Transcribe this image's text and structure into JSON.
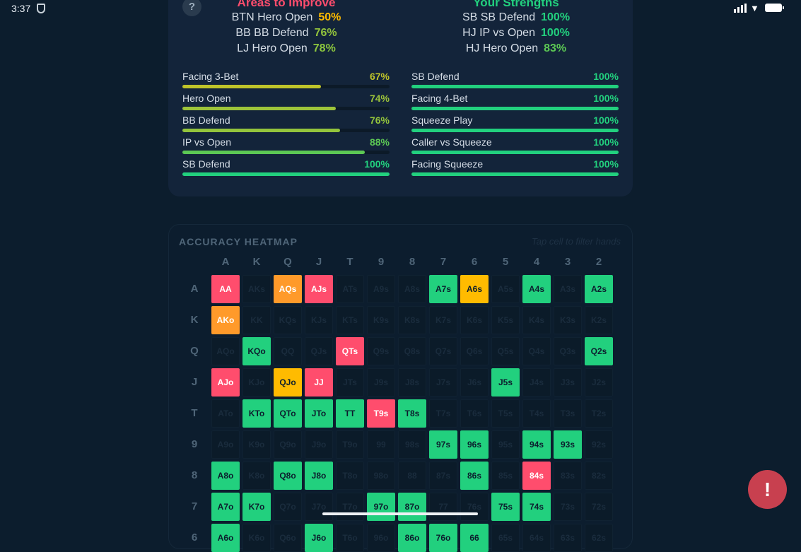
{
  "status_bar": {
    "time": "3:37"
  },
  "summary": {
    "help_label": "?",
    "improve": {
      "title": "Areas to Improve",
      "items": [
        {
          "label": "BTN Hero Open",
          "value": "50%",
          "color": "#ffbb00"
        },
        {
          "label": "BB BB Defend",
          "value": "76%",
          "color": "#93c43c"
        },
        {
          "label": "LJ Hero Open",
          "value": "78%",
          "color": "#8cc63e"
        }
      ]
    },
    "strengths": {
      "title": "Your Strengths",
      "items": [
        {
          "label": "SB SB Defend",
          "value": "100%",
          "color": "#22d07e"
        },
        {
          "label": "HJ IP vs Open",
          "value": "100%",
          "color": "#22d07e"
        },
        {
          "label": "HJ Hero Open",
          "value": "83%",
          "color": "#5cc854"
        }
      ]
    },
    "left_bars": [
      {
        "label": "Facing 3-Bet",
        "value": "67%",
        "pct": 67,
        "color": "#bfc42a"
      },
      {
        "label": "Hero Open",
        "value": "74%",
        "pct": 74,
        "color": "#9dc43a"
      },
      {
        "label": "BB Defend",
        "value": "76%",
        "pct": 76,
        "color": "#93c43c"
      },
      {
        "label": "IP vs Open",
        "value": "88%",
        "pct": 88,
        "color": "#5cc854"
      },
      {
        "label": "SB Defend",
        "value": "100%",
        "pct": 100,
        "color": "#22d07e"
      }
    ],
    "right_bars": [
      {
        "label": "SB Defend",
        "value": "100%",
        "pct": 100,
        "color": "#22d07e"
      },
      {
        "label": "Facing 4-Bet",
        "value": "100%",
        "pct": 100,
        "color": "#22d07e"
      },
      {
        "label": "Squeeze Play",
        "value": "100%",
        "pct": 100,
        "color": "#22d07e"
      },
      {
        "label": "Caller vs Squeeze",
        "value": "100%",
        "pct": 100,
        "color": "#22d07e"
      },
      {
        "label": "Facing Squeeze",
        "value": "100%",
        "pct": 100,
        "color": "#22d07e"
      }
    ]
  },
  "heatmap": {
    "title": "ACCURACY HEATMAP",
    "hint": "Tap cell to filter hands",
    "ranks": [
      "A",
      "K",
      "Q",
      "J",
      "T",
      "9",
      "8",
      "7",
      "6",
      "5",
      "4",
      "3",
      "2"
    ],
    "colors": {
      "red": "#ff4d6d",
      "orange": "#ff9a2a",
      "yellow": "#ffbb00",
      "green": "#22d07e"
    },
    "rows": [
      [
        "r",
        "",
        "o",
        "r",
        "",
        "",
        "",
        "g",
        "y",
        "",
        "g",
        "",
        "g"
      ],
      [
        "o",
        "",
        "",
        "",
        "",
        "",
        "",
        "",
        "",
        "",
        "",
        "",
        ""
      ],
      [
        "",
        "g",
        "",
        "",
        "r",
        "",
        "",
        "",
        "",
        "",
        "",
        "",
        "g"
      ],
      [
        "r",
        "",
        "y",
        "r",
        "",
        "",
        "",
        "",
        "",
        "g",
        "",
        "",
        ""
      ],
      [
        "",
        "g",
        "g",
        "g",
        "g",
        "r",
        "g",
        "",
        "",
        "",
        "",
        "",
        ""
      ],
      [
        "",
        "",
        "",
        "",
        "",
        "",
        "",
        "g",
        "g",
        "",
        "g",
        "g",
        ""
      ],
      [
        "g",
        "",
        "g",
        "g",
        "",
        "",
        "",
        "",
        "g",
        "",
        "r",
        "",
        ""
      ],
      [
        "g",
        "g",
        "",
        "",
        "",
        "g",
        "g",
        "",
        "",
        "g",
        "g",
        "",
        ""
      ],
      [
        "g",
        "",
        "",
        "g",
        "",
        "",
        "g",
        "g",
        "g",
        "",
        "",
        "",
        ""
      ]
    ]
  },
  "fab_label": "!"
}
